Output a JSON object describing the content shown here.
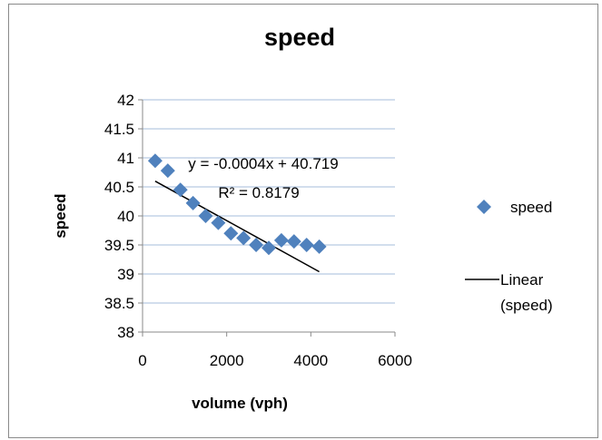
{
  "chart_data": {
    "type": "scatter",
    "title": "speed",
    "xlabel": "volume (vph)",
    "ylabel": "speed",
    "xlim": [
      0,
      6000
    ],
    "ylim": [
      38,
      42
    ],
    "x_ticks": [
      "0",
      "2000",
      "4000",
      "6000"
    ],
    "y_ticks": [
      "38",
      "38.5",
      "39",
      "39.5",
      "40",
      "40.5",
      "41",
      "41.5",
      "42"
    ],
    "grid": "horizontal",
    "legend": "right",
    "series": [
      {
        "name": "speed",
        "color": "#4f81bd",
        "marker": "diamond",
        "points": [
          {
            "x": 300,
            "y": 40.95
          },
          {
            "x": 600,
            "y": 40.78
          },
          {
            "x": 900,
            "y": 40.45
          },
          {
            "x": 1200,
            "y": 40.22
          },
          {
            "x": 1500,
            "y": 40.0
          },
          {
            "x": 1800,
            "y": 39.88
          },
          {
            "x": 2100,
            "y": 39.7
          },
          {
            "x": 2400,
            "y": 39.62
          },
          {
            "x": 2700,
            "y": 39.5
          },
          {
            "x": 3000,
            "y": 39.45
          },
          {
            "x": 3300,
            "y": 39.58
          },
          {
            "x": 3600,
            "y": 39.56
          },
          {
            "x": 3900,
            "y": 39.5
          },
          {
            "x": 4200,
            "y": 39.47
          }
        ]
      }
    ],
    "trendline": {
      "name": "Linear (speed)",
      "legend_lines": [
        "Linear",
        "(speed)"
      ],
      "slope": -0.0004,
      "intercept": 40.719,
      "x_range": [
        300,
        4200
      ],
      "color": "#000000",
      "equation": "y = -0.0004x + 40.719",
      "r_squared": "R² = 0.8179"
    }
  }
}
